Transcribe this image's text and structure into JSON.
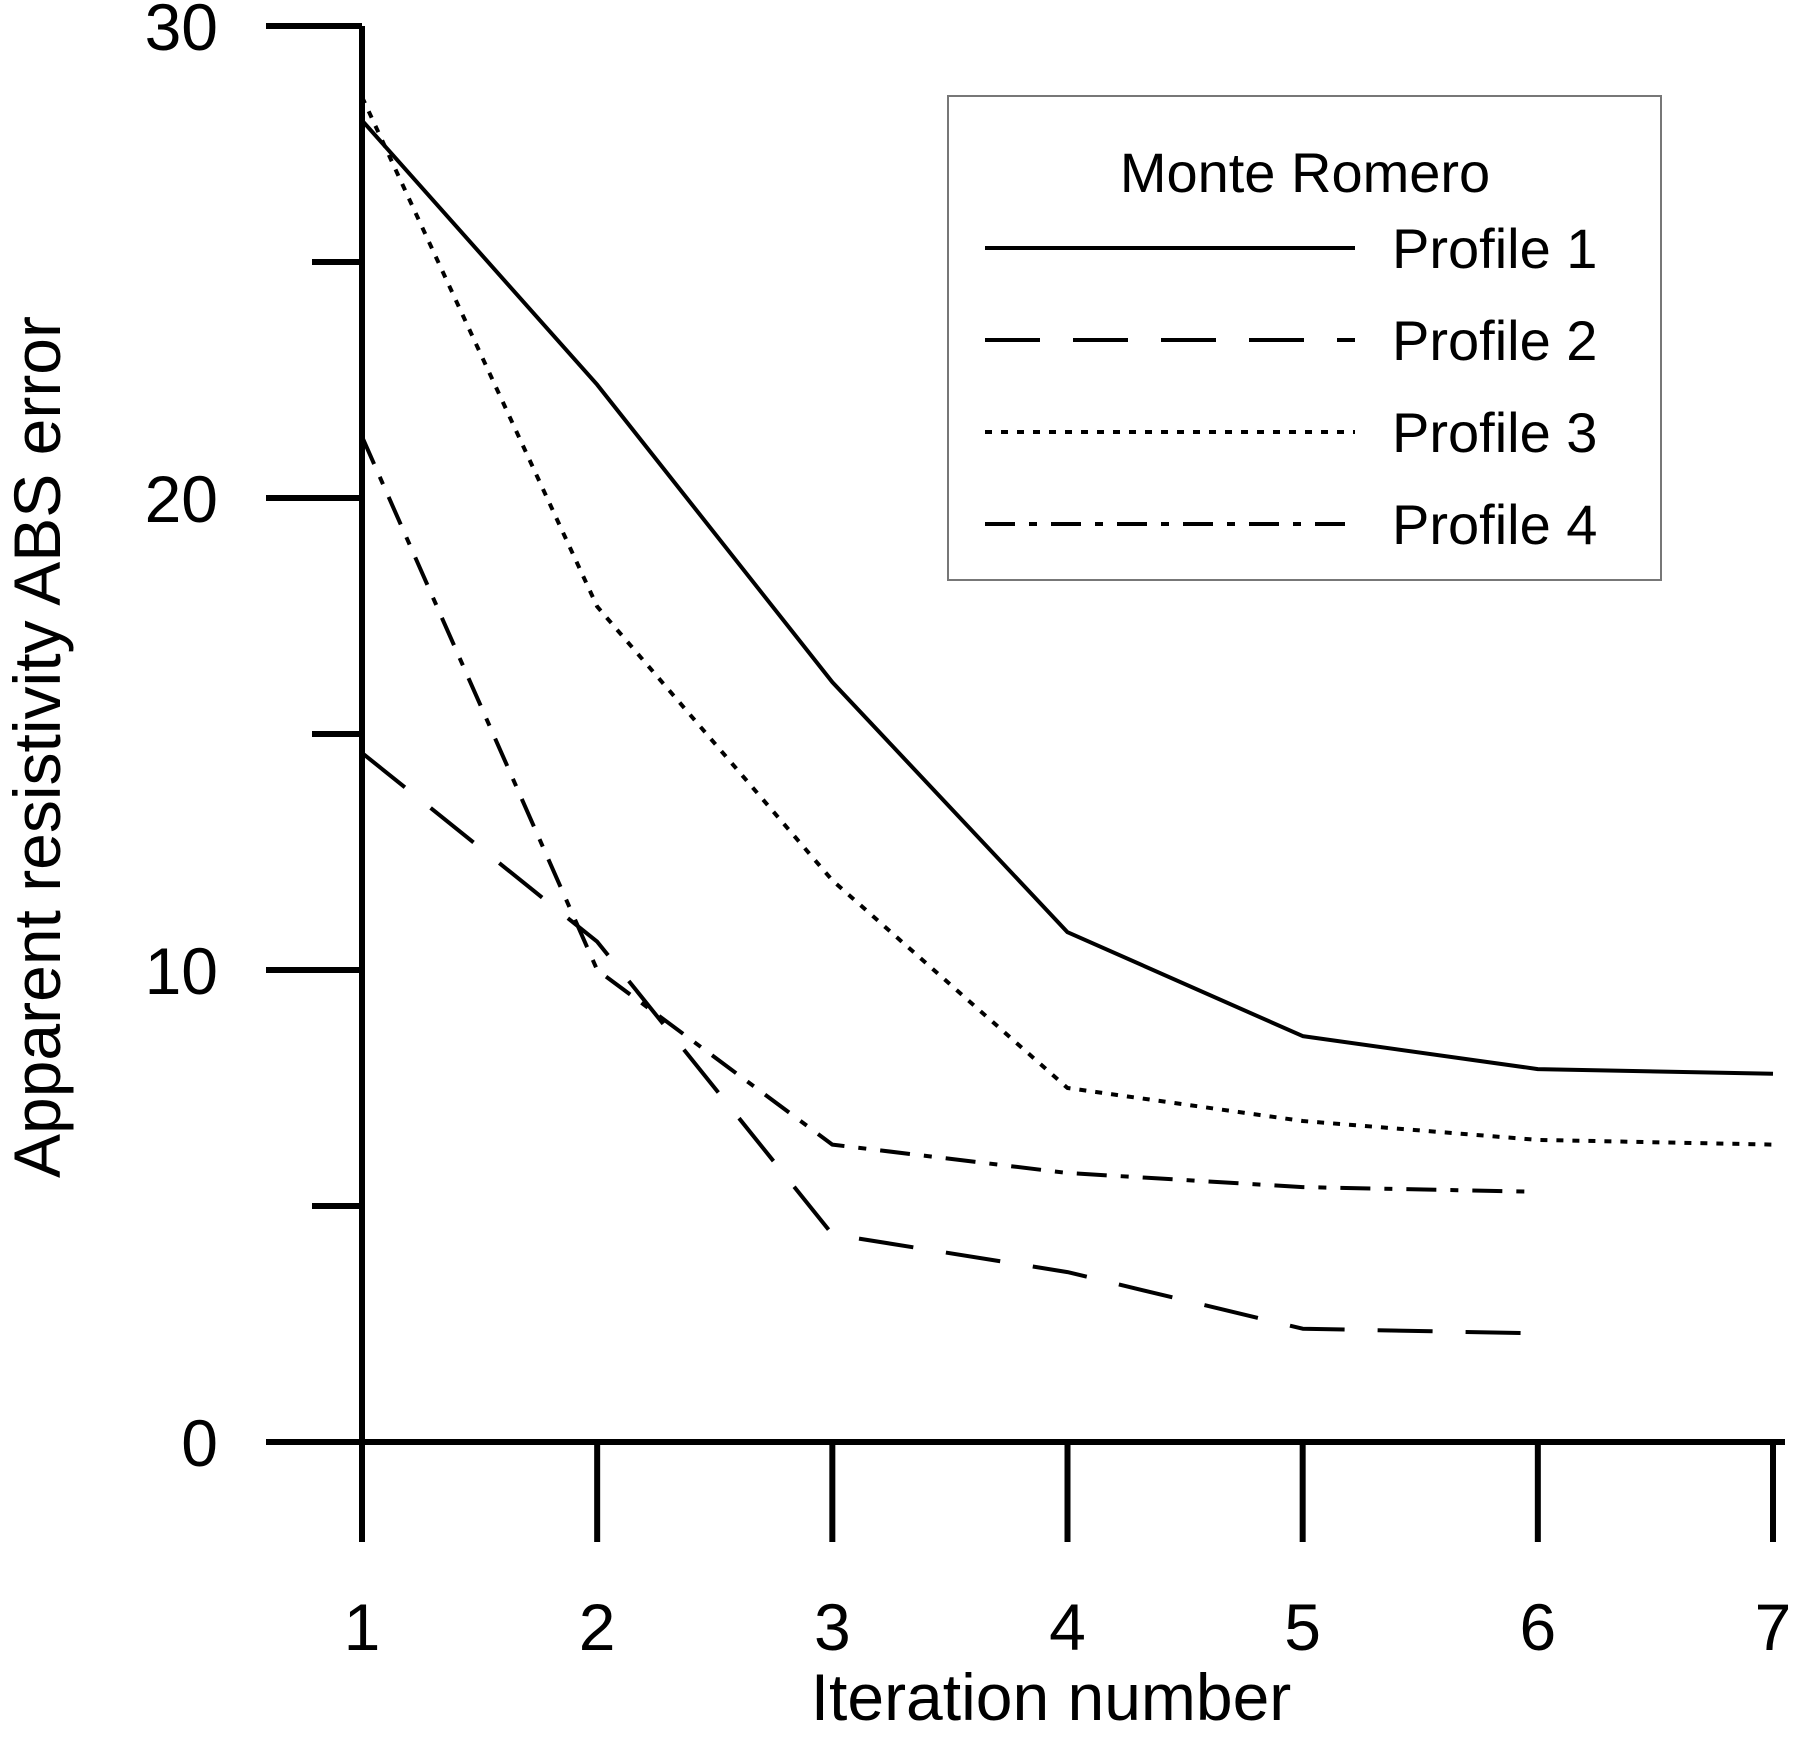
{
  "chart_data": {
    "type": "line",
    "xlabel": "Iteration number",
    "ylabel": "Apparent resistivity ABS error",
    "xlim": [
      1,
      7
    ],
    "ylim": [
      0,
      30
    ],
    "x_ticks": [
      1,
      2,
      3,
      4,
      5,
      6,
      7
    ],
    "x_tick_labels": [
      "1",
      "2",
      "3",
      "4",
      "5",
      "6",
      "7"
    ],
    "y_major_ticks": [
      0,
      10,
      20,
      30
    ],
    "y_tick_labels": [
      "0",
      "10",
      "20",
      "30"
    ],
    "y_minor_ticks": [
      5,
      15,
      25
    ],
    "grid": false,
    "legend": {
      "title": "Monte Romero",
      "placement": "top-right"
    },
    "series": [
      {
        "name": "Profile 1",
        "style": "solid",
        "x": [
          1,
          2,
          3,
          4,
          5,
          6,
          7
        ],
        "y": [
          28.0,
          22.4,
          16.1,
          10.8,
          8.6,
          7.9,
          7.8
        ]
      },
      {
        "name": "Profile 2",
        "style": "dashed",
        "x": [
          1,
          2,
          3,
          4,
          5,
          6
        ],
        "y": [
          14.6,
          10.6,
          4.4,
          3.6,
          2.4,
          2.3
        ]
      },
      {
        "name": "Profile 3",
        "style": "dotted",
        "x": [
          1,
          2,
          3,
          4,
          5,
          6,
          7
        ],
        "y": [
          28.5,
          17.7,
          11.9,
          7.5,
          6.8,
          6.4,
          6.3
        ]
      },
      {
        "name": "Profile 4",
        "style": "dashdot",
        "x": [
          1,
          2,
          3,
          4,
          5,
          6
        ],
        "y": [
          21.3,
          10.0,
          6.3,
          5.7,
          5.4,
          5.3
        ]
      }
    ]
  }
}
